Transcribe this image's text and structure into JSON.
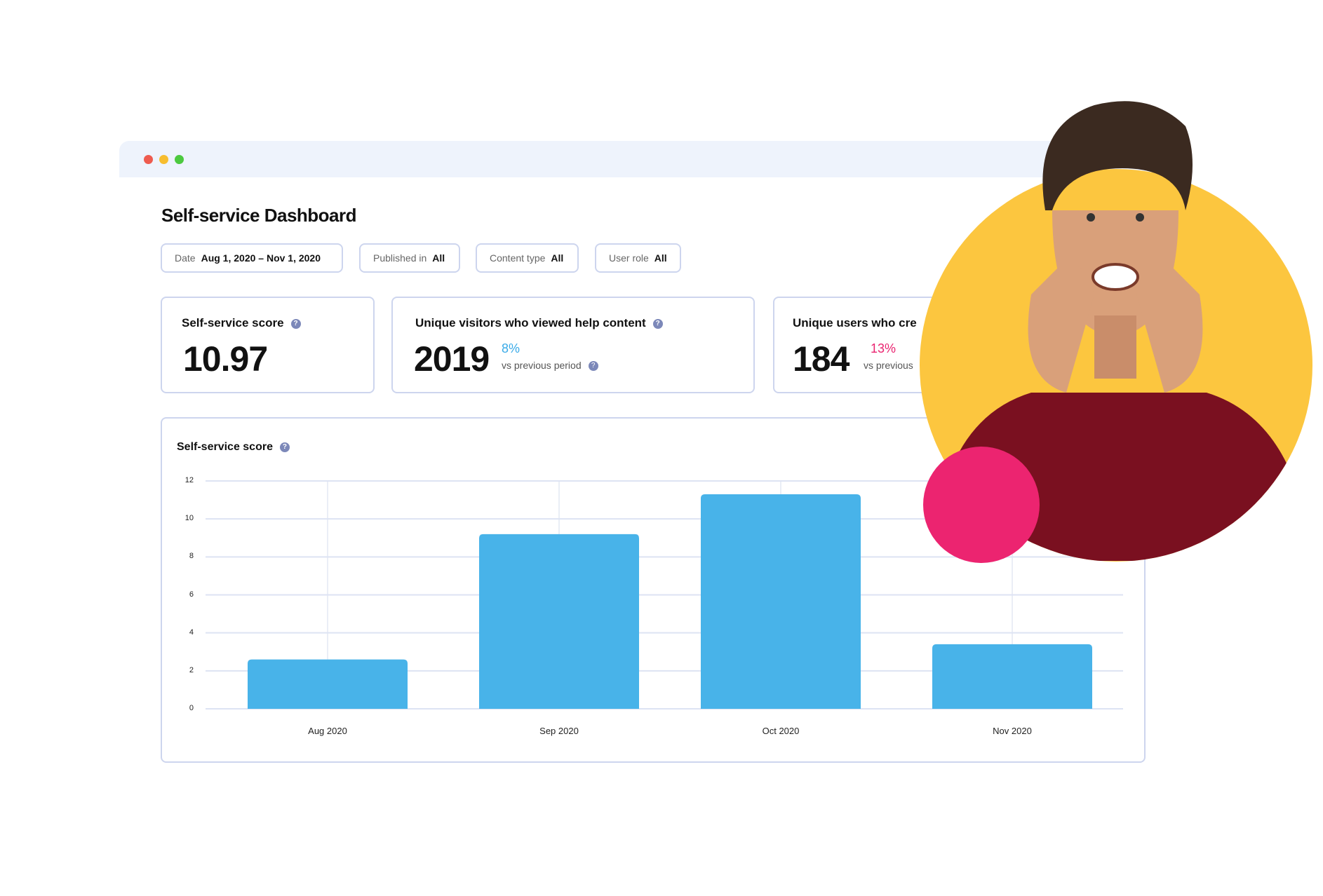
{
  "window": {
    "controls": [
      "close",
      "minimize",
      "maximize"
    ],
    "colors": {
      "close": "#ee5b4f",
      "minimize": "#f7bd2f",
      "maximize": "#4cc93f"
    }
  },
  "page_title": "Self-service Dashboard",
  "filters": [
    {
      "key": "Date",
      "value": "Aug 1, 2020 – Nov 1, 2020"
    },
    {
      "key": "Published in",
      "value": "All"
    },
    {
      "key": "Content type",
      "value": "All"
    },
    {
      "key": "User role",
      "value": "All"
    }
  ],
  "kpis": [
    {
      "title": "Self-service score",
      "value": "10.97"
    },
    {
      "title": "Unique visitors who viewed help content",
      "value": "2019",
      "change": "8%",
      "change_color": "#3aabe8",
      "comparison": "vs previous period"
    },
    {
      "title": "Unique users who cre",
      "value": "184",
      "change": "13%",
      "change_color": "#ea2470",
      "comparison": "vs previous"
    }
  ],
  "chart_data": {
    "type": "bar",
    "title": "Self-service score",
    "categories": [
      "Aug 2020",
      "Sep 2020",
      "Oct 2020",
      "Nov 2020"
    ],
    "values": [
      2.6,
      9.2,
      11.3,
      3.4
    ],
    "yticks": [
      "0",
      "2",
      "4",
      "6",
      "8",
      "10",
      "12"
    ],
    "ylim": [
      0,
      12
    ],
    "grid": true,
    "bar_color": "#48b3e9"
  },
  "decor": {
    "yellow": "#fcc63f",
    "pink": "#ec2470",
    "shirt": "#7a1020"
  }
}
